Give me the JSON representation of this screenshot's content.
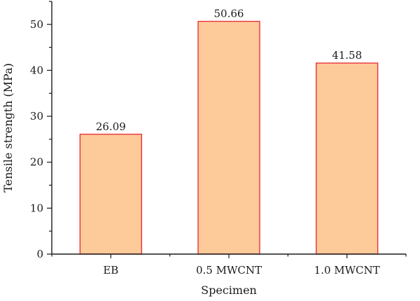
{
  "chart_data": {
    "type": "bar",
    "title": "",
    "xlabel": "Specimen",
    "ylabel": "Tensile strength (MPa)",
    "categories": [
      "EB",
      "0.5 MWCNT",
      "1.0 MWCNT"
    ],
    "values": [
      26.09,
      50.66,
      41.58
    ],
    "value_labels": [
      "26.09",
      "50.66",
      "41.58"
    ],
    "ylim": [
      0,
      55
    ],
    "yticks": [
      0,
      10,
      20,
      30,
      40,
      50
    ],
    "grid": false,
    "legend": "none",
    "colors": {
      "bar_fill": "#fdca9a",
      "bar_stroke": "#e8272f",
      "axis": "#1a1a1a"
    }
  }
}
